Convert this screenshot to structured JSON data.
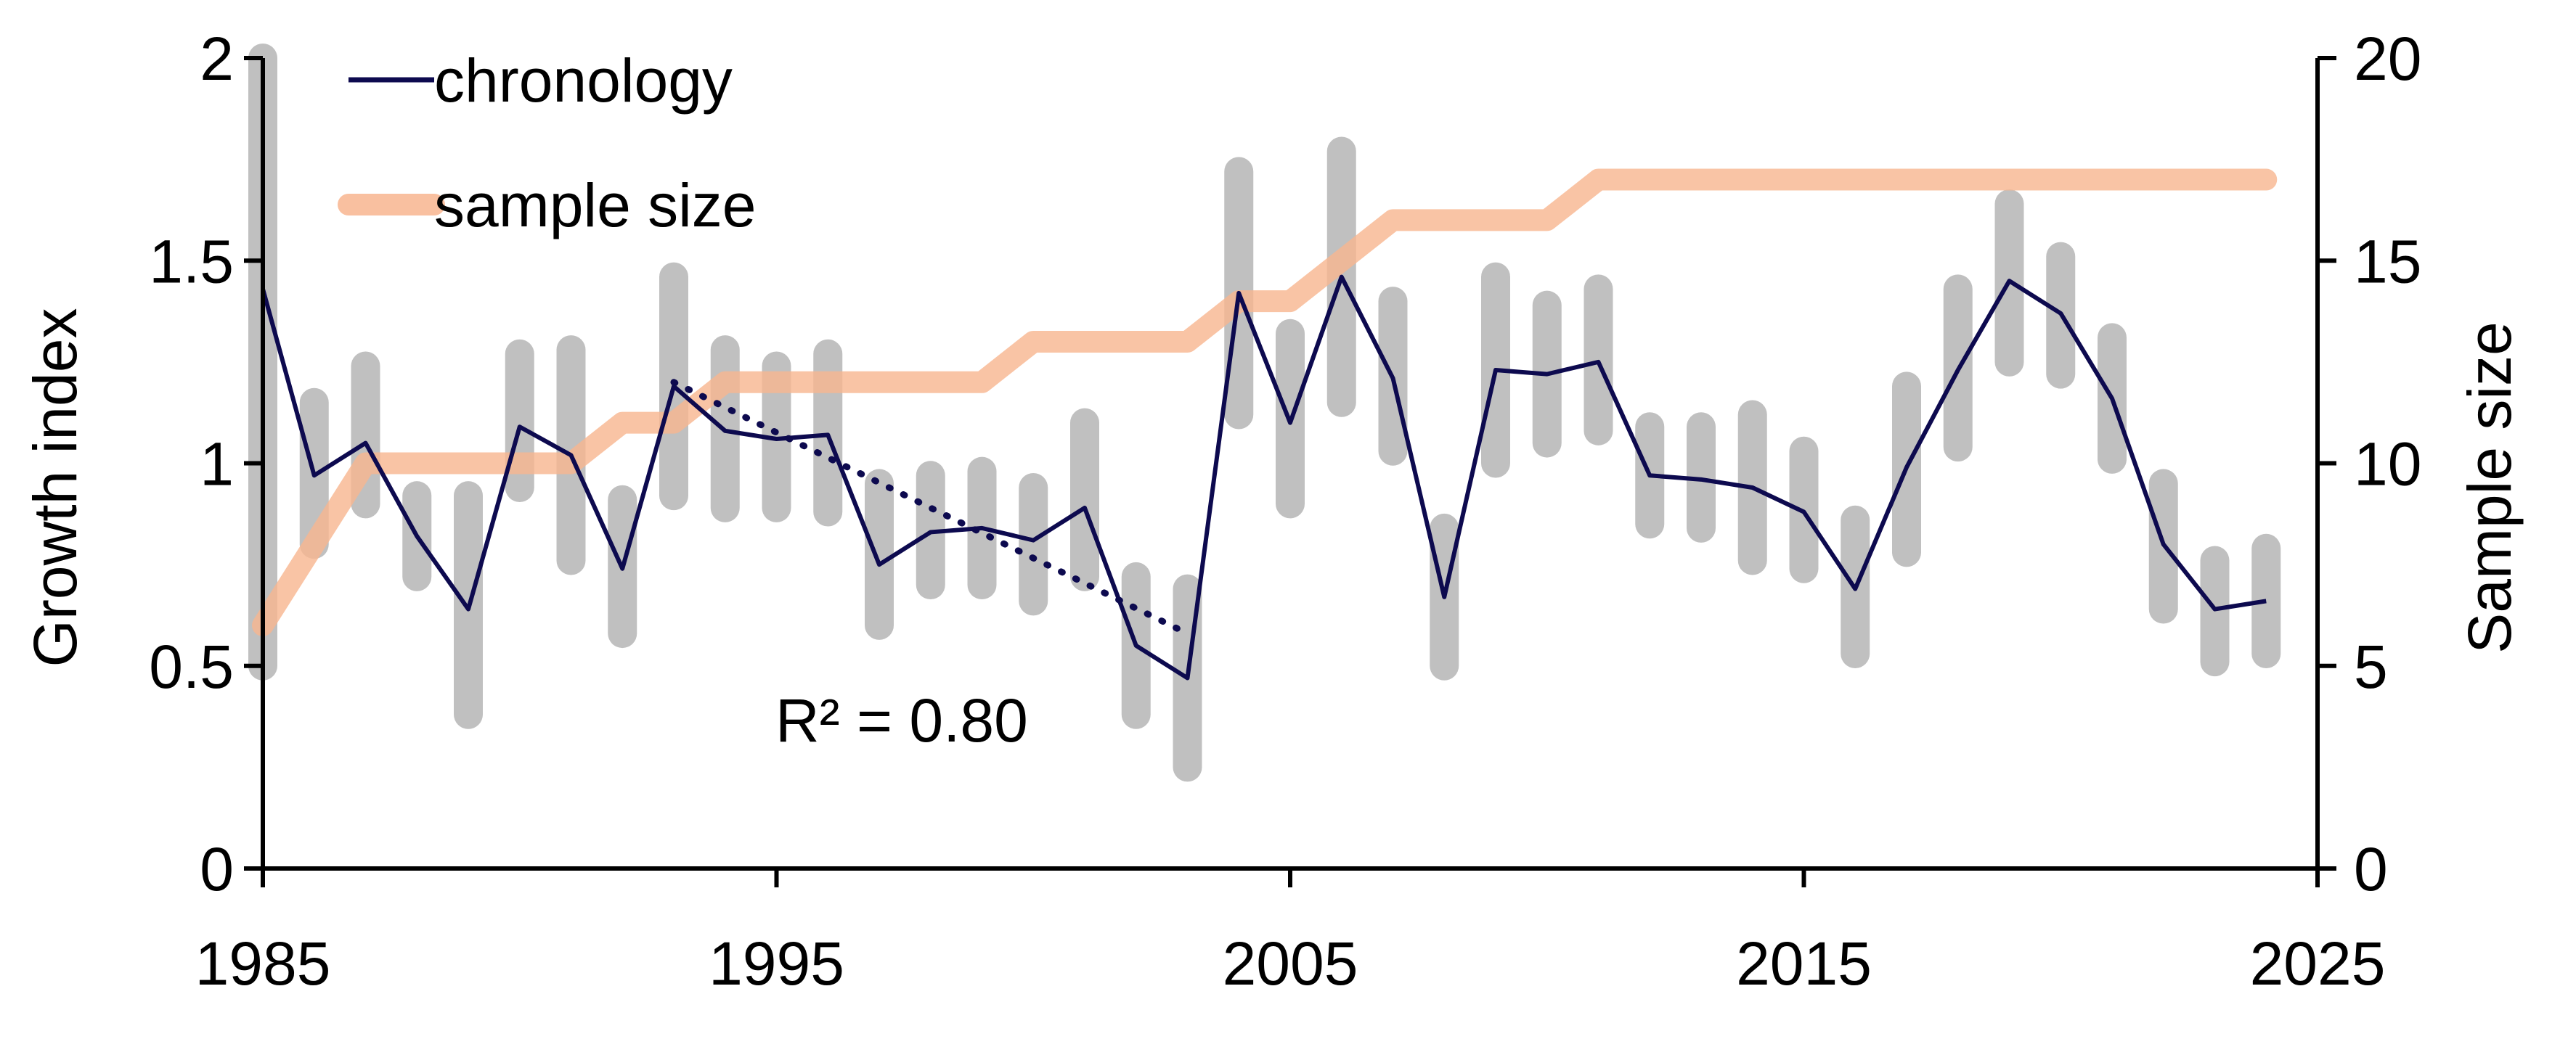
{
  "chart_data": {
    "type": "line",
    "title": "",
    "xlabel": "",
    "ylabel": "Growth index",
    "y2label": "Sample size",
    "xlim": [
      1985,
      2025
    ],
    "ylim": [
      0,
      2
    ],
    "y2lim": [
      0,
      20
    ],
    "xticks": [
      "1985",
      "1995",
      "2005",
      "2015",
      "2025"
    ],
    "yticks": [
      "0",
      "0.5",
      "1",
      "1.5",
      "2"
    ],
    "y2ticks": [
      "0",
      "5",
      "10",
      "15",
      "20"
    ],
    "grid": false,
    "legend_position": "top-left",
    "colors": {
      "chronology": "#0d0a4f",
      "sample_size": "#f8b58f",
      "range_bars": "#c0c0c0",
      "trend": "#0d0a4f"
    },
    "series": [
      {
        "name": "chronology",
        "axis": "left",
        "x": [
          1985,
          1986,
          1987,
          1988,
          1989,
          1990,
          1991,
          1992,
          1993,
          1994,
          1995,
          1996,
          1997,
          1998,
          1999,
          2000,
          2001,
          2002,
          2003,
          2004,
          2005,
          2006,
          2007,
          2008,
          2009,
          2010,
          2011,
          2012,
          2013,
          2014,
          2015,
          2016,
          2017,
          2018,
          2019,
          2020,
          2021,
          2022,
          2023,
          2024
        ],
        "values": [
          1.43,
          0.97,
          1.05,
          0.82,
          0.64,
          1.09,
          1.02,
          0.74,
          1.19,
          1.08,
          1.06,
          1.07,
          0.75,
          0.83,
          0.84,
          0.81,
          0.89,
          0.55,
          0.47,
          1.42,
          1.1,
          1.46,
          1.21,
          0.67,
          1.23,
          1.22,
          1.25,
          0.97,
          0.96,
          0.94,
          0.88,
          0.69,
          0.99,
          1.23,
          1.45,
          1.37,
          1.16,
          0.8,
          0.64,
          0.66
        ]
      },
      {
        "name": "sample size",
        "axis": "right",
        "x": [
          1985,
          1986,
          1987,
          1988,
          1989,
          1990,
          1991,
          1992,
          1993,
          1994,
          1995,
          1996,
          1997,
          1998,
          1999,
          2000,
          2001,
          2002,
          2003,
          2004,
          2005,
          2006,
          2007,
          2008,
          2009,
          2010,
          2011,
          2012,
          2013,
          2014,
          2015,
          2016,
          2017,
          2018,
          2019,
          2020,
          2021,
          2022,
          2023,
          2024
        ],
        "values": [
          6,
          8,
          10,
          10,
          10,
          10,
          10,
          11,
          11,
          12,
          12,
          12,
          12,
          12,
          12,
          13,
          13,
          13,
          13,
          14,
          14,
          15,
          16,
          16,
          16,
          16,
          17,
          17,
          17,
          17,
          17,
          17,
          17,
          17,
          17,
          17,
          17,
          17,
          17,
          17
        ]
      }
    ],
    "range_bars": {
      "name": "range",
      "axis": "left",
      "x": [
        1985,
        1986,
        1987,
        1988,
        1989,
        1990,
        1991,
        1992,
        1993,
        1994,
        1995,
        1996,
        1997,
        1998,
        1999,
        2000,
        2001,
        2002,
        2003,
        2004,
        2005,
        2006,
        2007,
        2008,
        2009,
        2010,
        2011,
        2012,
        2013,
        2014,
        2015,
        2016,
        2017,
        2018,
        2019,
        2020,
        2021,
        2022,
        2023,
        2024
      ],
      "low": [
        0.5,
        0.8,
        0.9,
        0.72,
        0.38,
        0.94,
        0.76,
        0.58,
        0.92,
        0.89,
        0.89,
        0.88,
        0.6,
        0.7,
        0.7,
        0.66,
        0.72,
        0.38,
        0.25,
        1.12,
        0.9,
        1.15,
        1.03,
        0.5,
        1.0,
        1.05,
        1.08,
        0.85,
        0.84,
        0.76,
        0.74,
        0.53,
        0.78,
        1.04,
        1.25,
        1.22,
        1.01,
        0.64,
        0.51,
        0.53
      ],
      "high": [
        2.0,
        1.15,
        1.24,
        0.92,
        0.92,
        1.27,
        1.28,
        0.91,
        1.46,
        1.28,
        1.24,
        1.27,
        0.95,
        0.97,
        0.98,
        0.94,
        1.1,
        0.72,
        0.69,
        1.72,
        1.32,
        1.77,
        1.4,
        0.84,
        1.46,
        1.39,
        1.43,
        1.09,
        1.09,
        1.12,
        1.03,
        0.86,
        1.19,
        1.43,
        1.64,
        1.51,
        1.31,
        0.95,
        0.76,
        0.79
      ]
    },
    "trendline": {
      "name": "trend",
      "x": [
        1993,
        2003
      ],
      "values": [
        1.2,
        0.58
      ],
      "r2_label": "R² = 0.80"
    },
    "legend": [
      {
        "key": "chronology",
        "label": "chronology"
      },
      {
        "key": "sample_size",
        "label": "sample size"
      }
    ]
  }
}
